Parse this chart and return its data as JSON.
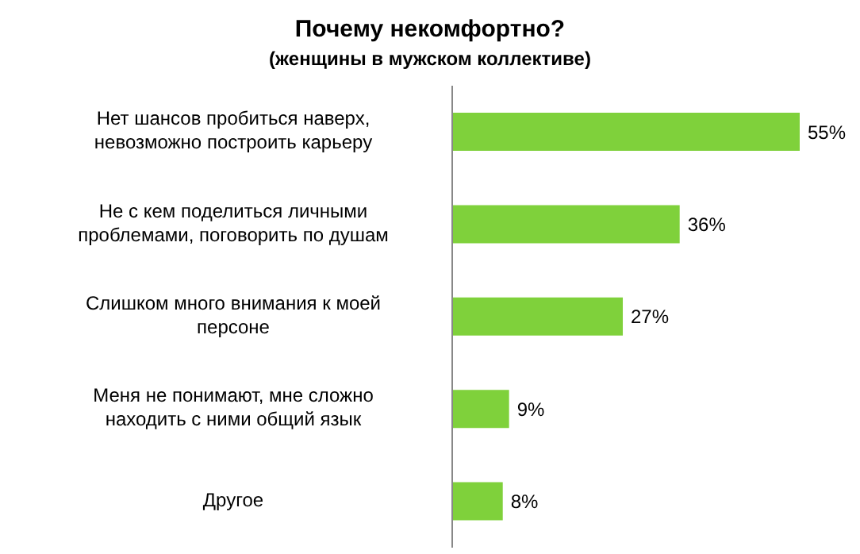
{
  "chart_data": {
    "type": "bar",
    "orientation": "horizontal",
    "title": "Почему некомфортно?",
    "subtitle": "(женщины в мужском коллективе)",
    "categories": [
      "Нет шансов пробиться наверх, невозможно построить карьеру",
      "Не с кем поделиться личными проблемами, поговорить по душам",
      "Слишком много внимания к моей персоне",
      "Меня не понимают, мне сложно находить с ними общий язык",
      "Другое"
    ],
    "values": [
      55,
      36,
      27,
      9,
      8
    ],
    "color": "#7fd13b",
    "value_labels": [
      "55%",
      "36%",
      "27%",
      "9%",
      "8%"
    ]
  }
}
